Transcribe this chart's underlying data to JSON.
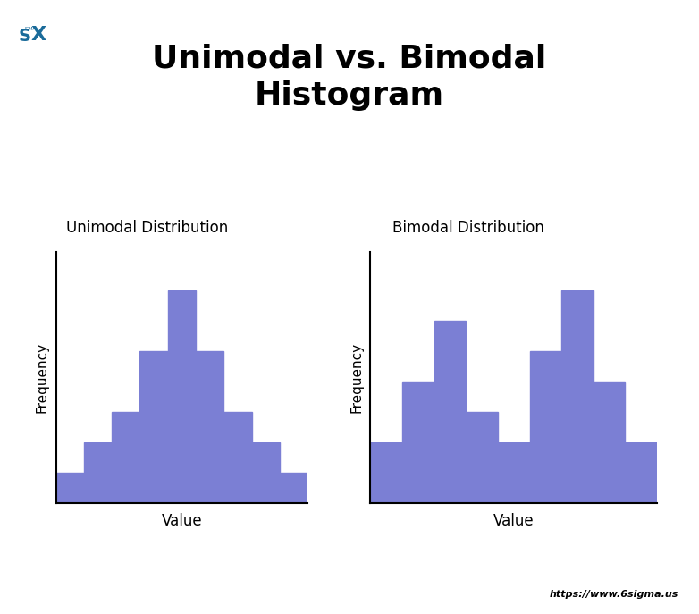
{
  "title": "Unimodal vs. Bimodal\nHistogram",
  "title_fontsize": 26,
  "title_fontweight": "bold",
  "bar_color": "#7B7FD4",
  "background_color": "#ffffff",
  "unimodal": {
    "label": "Unimodal Distribution",
    "xlabel": "Value",
    "ylabel": "Frequency",
    "values": [
      1,
      2,
      3,
      5,
      7,
      5,
      3,
      2,
      1
    ],
    "xlabel_fontsize": 12,
    "ylabel_fontsize": 11,
    "label_fontsize": 12
  },
  "bimodal": {
    "label": "Bimodal Distribution",
    "xlabel": "Value",
    "ylabel": "Frequency",
    "values": [
      2,
      4,
      6,
      3,
      2,
      5,
      7,
      4,
      2
    ],
    "xlabel_fontsize": 12,
    "ylabel_fontsize": 11,
    "label_fontsize": 12
  },
  "watermark": "https://www.6sigma.us",
  "watermark_fontsize": 8,
  "logo_color": "#1a6b9a"
}
